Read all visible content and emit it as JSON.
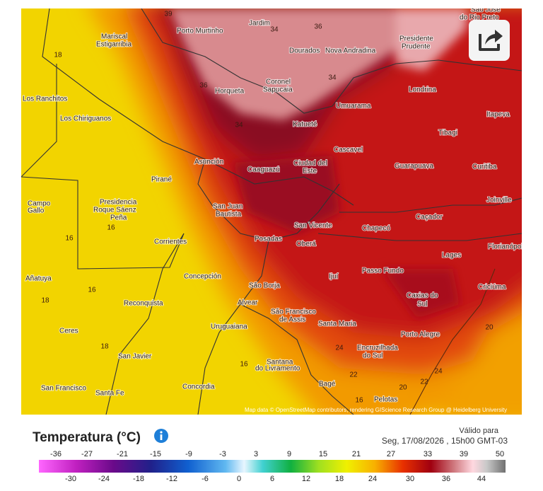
{
  "map": {
    "cities": [
      "Porto Murtinho",
      "Jardim",
      "São José",
      "do Rio Preto",
      "Mariscal",
      "Estigarribia",
      "Presidente",
      "Prudente",
      "Dourados",
      "Nova Andradina",
      "Los Ranchitos",
      "Horqueta",
      "Coronel",
      "Sapucaia",
      "Londrina",
      "Umuarama",
      "Itapeva",
      "Los Chiriguanos",
      "Katueté",
      "Tibagi",
      "Cascavel",
      "Asunción",
      "Caaguazú",
      "Ciudad del",
      "Este",
      "Guarapuava",
      "Curitiba",
      "Pirané",
      "Joinville",
      "Campo",
      "Gallo",
      "Presidencia",
      "Roque Sáenz",
      "Peña",
      "San Juan",
      "Bautista",
      "Caçador",
      "San Vicente",
      "Chapecó",
      "Corrientes",
      "Posadas",
      "Oberá",
      "Florianópolis",
      "Lages",
      "Passo Fundo",
      "Añatuya",
      "Concepción",
      "Ijuí",
      "São Borja",
      "Criciúma",
      "Caxias do",
      "Sul",
      "Alvear",
      "Reconquista",
      "São Francisco",
      "de Assis",
      "Santa Maria",
      "Uruguaiana",
      "Ceres",
      "Porto Alegre",
      "Encruzilhada",
      "do Sul",
      "San Javier",
      "Santana",
      "do Livramento",
      "Bagé",
      "Concordia",
      "San Francisco",
      "Santa Fe",
      "Pelotas"
    ],
    "isotherms": [
      39,
      36,
      34,
      18,
      36,
      34,
      16,
      16,
      18,
      16,
      18,
      24,
      22,
      20,
      22,
      16,
      16,
      24,
      20,
      34
    ],
    "attribution": "Map data © OpenStreetMap contributors, rendering GIScience Research Group @ Heidelberg University"
  },
  "legend": {
    "title": "Temperatura (°C)",
    "valid_label": "Válido para",
    "valid_time": "Seg, 17/08/2026 , 15h00 GMT-03",
    "ticks_top": [
      -36,
      -27,
      -21,
      -15,
      -9,
      -3,
      3,
      9,
      15,
      21,
      27,
      33,
      39,
      50
    ],
    "ticks_bottom": [
      -30,
      -24,
      -18,
      -12,
      -6,
      0,
      6,
      12,
      18,
      24,
      30,
      36,
      44
    ]
  }
}
